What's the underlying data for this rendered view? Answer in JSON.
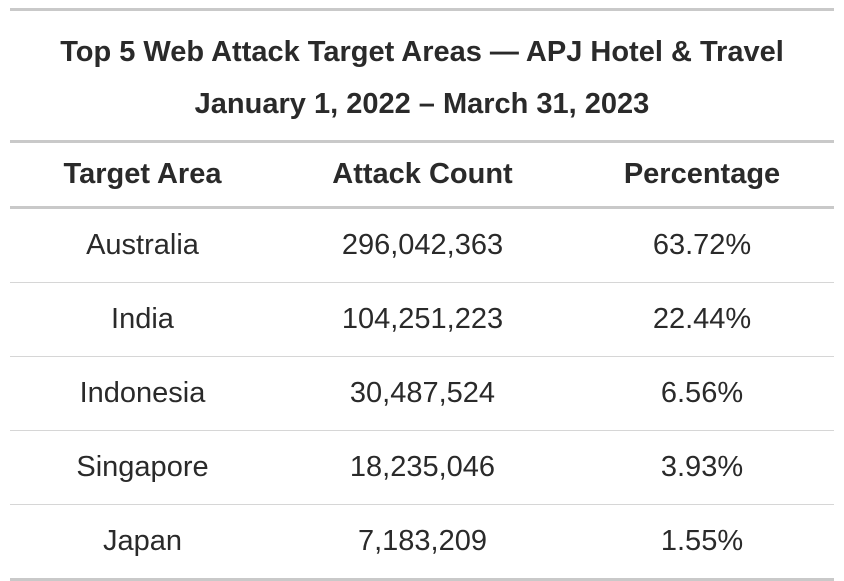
{
  "title": {
    "line1": "Top 5 Web Attack Target Areas — APJ Hotel & Travel",
    "line2": "January 1, 2022 – March 31, 2023"
  },
  "chart_data": {
    "type": "table",
    "columns": [
      "Target Area",
      "Attack Count",
      "Percentage"
    ],
    "rows": [
      {
        "target_area": "Australia",
        "attack_count": "296,042,363",
        "percentage": "63.72%"
      },
      {
        "target_area": "India",
        "attack_count": "104,251,223",
        "percentage": "22.44%"
      },
      {
        "target_area": "Indonesia",
        "attack_count": "30,487,524",
        "percentage": "6.56%"
      },
      {
        "target_area": "Singapore",
        "attack_count": "18,235,046",
        "percentage": "3.93%"
      },
      {
        "target_area": "Japan",
        "attack_count": "7,183,209",
        "percentage": "1.55%"
      }
    ]
  }
}
